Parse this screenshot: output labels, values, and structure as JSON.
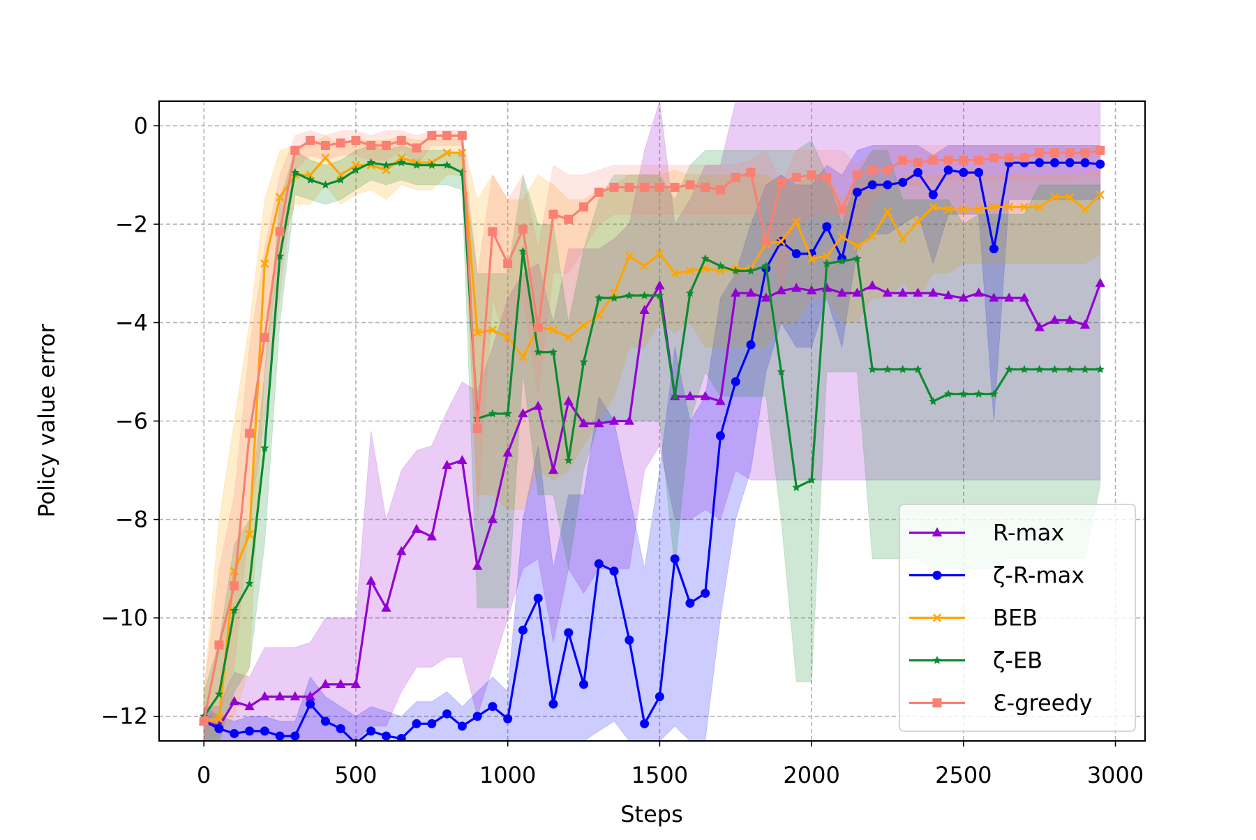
{
  "chart_data": {
    "type": "line",
    "xlabel": "Steps",
    "ylabel": "Policy value error",
    "x": [
      0,
      50,
      100,
      150,
      200,
      250,
      300,
      350,
      400,
      450,
      500,
      550,
      600,
      650,
      700,
      750,
      800,
      850,
      900,
      950,
      1000,
      1050,
      1100,
      1150,
      1200,
      1250,
      1300,
      1350,
      1400,
      1450,
      1500,
      1550,
      1600,
      1650,
      1700,
      1750,
      1800,
      1850,
      1900,
      1950,
      2000,
      2050,
      2100,
      2150,
      2200,
      2250,
      2300,
      2350,
      2400,
      2450,
      2500,
      2550,
      2600,
      2650,
      2700,
      2750,
      2800,
      2850,
      2900,
      2950
    ],
    "xlim": [
      -147.5,
      3097.5
    ],
    "xticks": [
      0,
      500,
      1000,
      1500,
      2000,
      2500,
      3000
    ],
    "ylim": [
      -12.5,
      0.5
    ],
    "yticks": [
      {
        "value": -12,
        "label": "−12"
      },
      {
        "value": -10,
        "label": "−10"
      },
      {
        "value": -8,
        "label": "−8"
      },
      {
        "value": -6,
        "label": "−6"
      },
      {
        "value": -4,
        "label": "−4"
      },
      {
        "value": -2,
        "label": "−2"
      },
      0
    ],
    "grid": true,
    "legend": "lower right",
    "series": [
      {
        "name": "R-max",
        "color": "#9400d3",
        "marker": "triangle",
        "values": [
          -12.1,
          -12.2,
          -11.7,
          -11.8,
          -11.6,
          -11.6,
          -11.6,
          -11.6,
          -11.35,
          -11.35,
          -11.35,
          -9.25,
          -9.8,
          -8.65,
          -8.2,
          -8.35,
          -6.9,
          -6.8,
          -8.95,
          -8.0,
          -6.65,
          -5.85,
          -5.7,
          -7.0,
          -5.6,
          -6.05,
          -6.05,
          -6.0,
          -6.0,
          -3.75,
          -3.25,
          -5.5,
          -5.5,
          -5.5,
          -5.6,
          -3.4,
          -3.4,
          -3.5,
          -3.35,
          -3.3,
          -3.35,
          -3.3,
          -3.4,
          -3.4,
          -3.25,
          -3.4,
          -3.4,
          -3.4,
          -3.4,
          -3.45,
          -3.5,
          -3.4,
          -3.5,
          -3.5,
          -3.5,
          -4.1,
          -3.95,
          -3.95,
          -4.05,
          -3.2
        ],
        "upper": [
          -11.8,
          -11.8,
          -11.1,
          -11.2,
          -10.6,
          -10.6,
          -10.6,
          -10.5,
          -10.0,
          -10.0,
          -10.0,
          -6.2,
          -8.0,
          -7.0,
          -6.6,
          -6.5,
          -5.8,
          -5.2,
          -5.4,
          -4.5,
          -3.5,
          -3.0,
          -2.8,
          -4.0,
          -2.5,
          -2.5,
          -2.5,
          -2.3,
          -2.0,
          -0.5,
          0.5,
          -2.0,
          -1.5,
          -0.8,
          -0.8,
          0.5,
          0.5,
          0.5,
          0.5,
          0.5,
          0.5,
          0.5,
          0.5,
          0.5,
          0.5,
          0.5,
          0.5,
          0.5,
          0.5,
          0.5,
          0.5,
          0.5,
          0.5,
          0.5,
          0.5,
          0.5,
          0.5,
          0.5,
          0.5,
          0.5
        ],
        "lower": [
          -12.5,
          -12.5,
          -12.5,
          -12.5,
          -12.5,
          -12.5,
          -12.5,
          -12.5,
          -12.5,
          -12.5,
          -12.5,
          -12.2,
          -12.2,
          -11.5,
          -11.0,
          -11.0,
          -10.8,
          -10.8,
          -12.0,
          -11.0,
          -10.0,
          -9.0,
          -8.8,
          -10.5,
          -9.0,
          -9.5,
          -9.0,
          -9.0,
          -9.0,
          -7.0,
          -6.5,
          -8.0,
          -8.0,
          -7.8,
          -8.0,
          -7.0,
          -7.2,
          -7.2,
          -7.2,
          -7.2,
          -7.2,
          -7.2,
          -7.2,
          -7.2,
          -7.2,
          -7.2,
          -7.2,
          -7.2,
          -7.2,
          -7.2,
          -7.2,
          -7.2,
          -7.2,
          -7.2,
          -7.2,
          -7.2,
          -7.2,
          -7.2,
          -7.2,
          -7.2
        ]
      },
      {
        "name": "ζ-R-max",
        "color": "#0000ff",
        "marker": "circle",
        "values": [
          -12.1,
          -12.25,
          -12.35,
          -12.3,
          -12.3,
          -12.4,
          -12.4,
          -11.75,
          -12.1,
          -12.25,
          -12.55,
          -12.3,
          -12.4,
          -12.45,
          -12.15,
          -12.15,
          -11.95,
          -12.2,
          -12.0,
          -11.8,
          -12.05,
          -10.25,
          -9.6,
          -11.75,
          -10.3,
          -11.35,
          -8.9,
          -9.05,
          -10.45,
          -12.15,
          -11.6,
          -8.8,
          -9.7,
          -9.5,
          -6.3,
          -5.2,
          -4.45,
          -2.9,
          -2.35,
          -2.6,
          -2.6,
          -2.05,
          -2.7,
          -1.35,
          -1.2,
          -1.2,
          -1.15,
          -0.95,
          -1.4,
          -0.9,
          -0.95,
          -0.95,
          -2.5,
          -0.75,
          -0.75,
          -0.75,
          -0.75,
          -0.75,
          -0.75,
          -0.78
        ],
        "upper": [
          -11.8,
          -12.0,
          -12.1,
          -12.0,
          -12.0,
          -12.1,
          -12.1,
          -11.2,
          -11.6,
          -11.8,
          -12.0,
          -11.8,
          -11.9,
          -12.0,
          -11.7,
          -11.7,
          -11.5,
          -11.8,
          -11.5,
          -11.2,
          -11.5,
          -8.0,
          -6.5,
          -9.0,
          -7.5,
          -7.5,
          -5.5,
          -6.0,
          -7.5,
          -9.0,
          -7.0,
          -4.5,
          -6.0,
          -5.5,
          -3.5,
          -3.0,
          -2.0,
          -1.2,
          -1.0,
          -1.2,
          -1.2,
          -0.8,
          -1.0,
          -0.5,
          -0.4,
          -0.4,
          -0.4,
          -0.4,
          -0.6,
          -0.4,
          -0.4,
          -0.4,
          -0.4,
          -0.4,
          -0.4,
          -0.4,
          -0.4,
          -0.4,
          -0.4,
          -0.4
        ],
        "lower": [
          -12.5,
          -12.5,
          -12.5,
          -12.5,
          -12.5,
          -12.5,
          -12.5,
          -12.5,
          -12.5,
          -12.5,
          -12.5,
          -12.5,
          -12.5,
          -12.5,
          -12.5,
          -12.5,
          -12.5,
          -12.5,
          -12.5,
          -12.5,
          -12.5,
          -12.5,
          -12.5,
          -12.5,
          -12.5,
          -12.5,
          -12.3,
          -12.1,
          -12.5,
          -12.5,
          -12.5,
          -12.2,
          -12.5,
          -12.5,
          -10.0,
          -8.0,
          -7.0,
          -5.0,
          -4.0,
          -4.5,
          -4.5,
          -3.5,
          -4.5,
          -2.5,
          -2.2,
          -2.2,
          -2.0,
          -1.8,
          -2.8,
          -1.8,
          -1.8,
          -1.8,
          -6.0,
          -1.5,
          -1.5,
          -1.5,
          -1.5,
          -1.5,
          -1.5,
          -1.5
        ]
      },
      {
        "name": "BEB",
        "color": "#ffa500",
        "marker": "x",
        "values": [
          -12.1,
          -12.05,
          -9.05,
          -8.3,
          -2.8,
          -1.45,
          -1.0,
          -1.0,
          -0.65,
          -1.0,
          -0.8,
          -0.8,
          -0.9,
          -0.65,
          -0.75,
          -0.75,
          -0.55,
          -0.55,
          -4.2,
          -4.15,
          -4.3,
          -4.7,
          -4.1,
          -4.15,
          -4.3,
          -4.05,
          -3.85,
          -3.4,
          -2.65,
          -2.85,
          -2.6,
          -3.0,
          -2.95,
          -2.9,
          -2.95,
          -2.9,
          -2.9,
          -2.4,
          -2.35,
          -1.95,
          -2.7,
          -2.65,
          -2.25,
          -2.45,
          -2.25,
          -1.75,
          -2.3,
          -1.95,
          -1.65,
          -1.7,
          -1.7,
          -1.7,
          -1.65,
          -1.65,
          -1.65,
          -1.65,
          -1.45,
          -1.45,
          -1.7,
          -1.4
        ],
        "upper": [
          -11.5,
          -8.0,
          -6.0,
          -4.0,
          -1.5,
          -0.5,
          -0.4,
          -0.4,
          -0.2,
          -0.4,
          -0.3,
          -0.3,
          -0.3,
          -0.2,
          -0.3,
          -0.3,
          -0.2,
          -0.3,
          -1.5,
          -1.0,
          -1.5,
          -1.5,
          -1.0,
          -1.2,
          -1.5,
          -1.5,
          -1.3,
          -1.2,
          -1.0,
          -1.0,
          -1.0,
          -0.9,
          -1.0,
          -1.0,
          -1.0,
          -1.0,
          -1.0,
          -1.0,
          -1.2,
          -1.2,
          -1.0,
          -1.0,
          -1.5,
          -1.2,
          -1.0,
          -1.3,
          -1.0,
          -1.0,
          -1.0,
          -1.0,
          -1.0,
          -1.0,
          -1.0,
          -1.0,
          -1.0,
          -1.0,
          -1.0,
          -1.0,
          -1.0,
          -0.9
        ],
        "lower": [
          -12.5,
          -12.5,
          -12.0,
          -11.0,
          -5.0,
          -2.5,
          -1.6,
          -1.6,
          -1.2,
          -1.6,
          -1.4,
          -1.3,
          -1.5,
          -1.2,
          -1.3,
          -1.3,
          -1.0,
          -1.0,
          -7.5,
          -7.5,
          -7.8,
          -7.8,
          -7.0,
          -7.2,
          -7.0,
          -6.5,
          -6.0,
          -5.5,
          -4.5,
          -4.5,
          -4.0,
          -4.2,
          -4.0,
          -4.5,
          -4.5,
          -4.5,
          -4.5,
          -4.5,
          -4.0,
          -4.0,
          -3.5,
          -3.5,
          -4.0,
          -4.0,
          -3.5,
          -3.5,
          -3.2,
          -3.5,
          -3.0,
          -3.0,
          -2.8,
          -2.8,
          -2.8,
          -2.8,
          -2.8,
          -2.8,
          -2.8,
          -2.8,
          -2.8,
          -2.6
        ]
      },
      {
        "name": "ζ-EB",
        "color": "#0b8a2f",
        "marker": "star",
        "values": [
          -12.0,
          -11.55,
          -9.85,
          -9.3,
          -6.55,
          -2.65,
          -0.95,
          -1.1,
          -1.2,
          -1.1,
          -0.9,
          -0.75,
          -0.8,
          -0.75,
          -0.8,
          -0.8,
          -0.8,
          -0.95,
          -5.95,
          -5.85,
          -5.85,
          -2.55,
          -4.6,
          -4.6,
          -6.8,
          -4.8,
          -3.5,
          -3.5,
          -3.45,
          -3.45,
          -3.45,
          -5.5,
          -3.4,
          -2.7,
          -2.85,
          -2.95,
          -2.95,
          -2.85,
          -5.0,
          -7.35,
          -7.2,
          -2.8,
          -2.75,
          -2.7,
          -4.95,
          -4.95,
          -4.95,
          -4.95,
          -5.6,
          -5.45,
          -5.45,
          -5.45,
          -5.45,
          -4.95,
          -4.95,
          -4.95,
          -4.95,
          -4.95,
          -4.95,
          -4.95
        ],
        "upper": [
          -11.5,
          -10.5,
          -8.5,
          -8.0,
          -5.0,
          -1.5,
          -0.5,
          -0.7,
          -0.8,
          -0.7,
          -0.5,
          -0.4,
          -0.5,
          -0.4,
          -0.5,
          -0.5,
          -0.5,
          -0.6,
          -3.0,
          -3.0,
          -3.0,
          -1.0,
          -2.0,
          -2.0,
          -4.0,
          -2.5,
          -1.5,
          -1.0,
          -1.0,
          -1.0,
          -1.0,
          -1.5,
          -0.8,
          -0.5,
          -0.5,
          -0.5,
          -0.5,
          -0.5,
          -0.5,
          -0.5,
          -0.3,
          -1.0,
          -2.0,
          -1.0,
          -0.5,
          -0.5,
          -1.5,
          -1.5,
          -1.5,
          -1.5,
          -2.0,
          -1.8,
          -1.8,
          -1.8,
          -1.8,
          -1.2,
          -1.2,
          -1.2,
          -1.2,
          -1.2
        ],
        "lower": [
          -12.5,
          -12.5,
          -11.5,
          -11.0,
          -8.5,
          -4.0,
          -1.4,
          -1.5,
          -1.6,
          -1.5,
          -1.3,
          -1.1,
          -1.2,
          -1.1,
          -1.2,
          -1.2,
          -1.2,
          -1.3,
          -9.8,
          -9.8,
          -9.8,
          -5.0,
          -7.5,
          -7.5,
          -9.0,
          -7.0,
          -6.0,
          -6.0,
          -6.0,
          -6.0,
          -6.0,
          -9.0,
          -6.0,
          -5.0,
          -5.5,
          -5.5,
          -5.5,
          -5.5,
          -8.0,
          -11.3,
          -11.3,
          -5.0,
          -5.0,
          -5.0,
          -8.8,
          -8.8,
          -8.8,
          -8.8,
          -9.0,
          -9.0,
          -9.0,
          -9.0,
          -9.0,
          -8.8,
          -8.8,
          -8.8,
          -8.8,
          -8.8,
          -8.8,
          -7.3
        ]
      },
      {
        "name": "Ɛ-greedy",
        "color": "#fa8072",
        "marker": "square",
        "values": [
          -12.1,
          -10.55,
          -9.35,
          -6.25,
          -4.3,
          -2.15,
          -0.5,
          -0.3,
          -0.4,
          -0.35,
          -0.3,
          -0.4,
          -0.4,
          -0.3,
          -0.45,
          -0.2,
          -0.2,
          -0.2,
          -6.15,
          -2.15,
          -2.8,
          -2.1,
          -4.1,
          -1.8,
          -1.9,
          -1.65,
          -1.35,
          -1.25,
          -1.25,
          -1.25,
          -1.25,
          -1.25,
          -1.2,
          -1.25,
          -1.3,
          -1.05,
          -0.95,
          -2.35,
          -1.15,
          -1.05,
          -1.0,
          -1.05,
          -1.7,
          -1.0,
          -0.9,
          -0.9,
          -0.7,
          -0.75,
          -0.7,
          -0.7,
          -0.7,
          -0.7,
          -0.65,
          -0.65,
          -0.65,
          -0.55,
          -0.55,
          -0.55,
          -0.55,
          -0.5
        ],
        "upper": [
          -11.5,
          -9.0,
          -7.5,
          -4.5,
          -2.5,
          -1.0,
          -0.2,
          -0.1,
          -0.2,
          -0.1,
          -0.1,
          -0.2,
          -0.1,
          -0.1,
          -0.2,
          -0.1,
          -0.1,
          -0.1,
          -3.0,
          -1.0,
          -1.5,
          -1.0,
          -2.5,
          -0.8,
          -1.0,
          -1.0,
          -0.9,
          -0.8,
          -0.8,
          -0.8,
          -0.8,
          -0.8,
          -0.8,
          -0.8,
          -0.8,
          -0.8,
          -0.7,
          -0.5,
          -1.2,
          -0.5,
          -0.5,
          -0.5,
          -0.5,
          -0.8,
          -0.5,
          -0.4,
          -0.4,
          -0.4,
          -0.4,
          -0.4,
          -0.4,
          -0.4,
          -0.4,
          -0.4,
          -0.4,
          -0.4,
          -0.4,
          -0.4,
          -0.4,
          -0.4
        ],
        "lower": [
          -12.5,
          -12.0,
          -11.0,
          -8.0,
          -6.0,
          -3.5,
          -0.9,
          -0.6,
          -0.7,
          -0.6,
          -0.6,
          -0.7,
          -0.7,
          -0.5,
          -0.8,
          -0.4,
          -0.4,
          -0.4,
          -8.0,
          -3.5,
          -4.5,
          -3.5,
          -5.5,
          -3.0,
          -3.0,
          -2.5,
          -2.0,
          -1.8,
          -1.8,
          -1.8,
          -1.8,
          -1.8,
          -1.8,
          -1.8,
          -1.8,
          -1.8,
          -1.8,
          -1.5,
          -3.5,
          -2.0,
          -1.8,
          -1.8,
          -1.8,
          -2.5,
          -1.5,
          -1.3,
          -1.2,
          -1.2,
          -1.1,
          -1.1,
          -1.1,
          -1.1,
          -1.1,
          -1.1,
          -1.1,
          -1.1,
          -1.1,
          -1.1,
          -1.0,
          -1.0
        ]
      }
    ]
  }
}
